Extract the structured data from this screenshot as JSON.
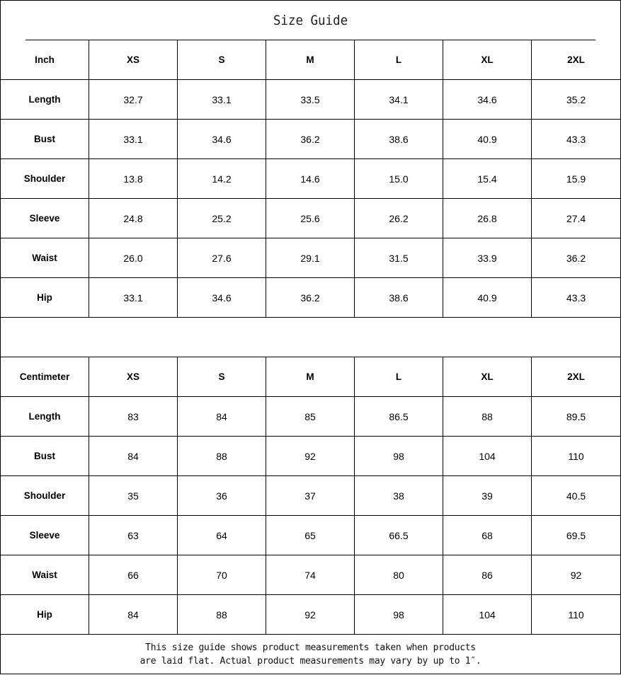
{
  "title": "Size Guide",
  "inch_table": {
    "header": [
      "Inch",
      "XS",
      "S",
      "M",
      "L",
      "XL",
      "2XL"
    ],
    "rows": [
      [
        "Length",
        "32.7",
        "33.1",
        "33.5",
        "34.1",
        "34.6",
        "35.2"
      ],
      [
        "Bust",
        "33.1",
        "34.6",
        "36.2",
        "38.6",
        "40.9",
        "43.3"
      ],
      [
        "Shoulder",
        "13.8",
        "14.2",
        "14.6",
        "15.0",
        "15.4",
        "15.9"
      ],
      [
        "Sleeve",
        "24.8",
        "25.2",
        "25.6",
        "26.2",
        "26.8",
        "27.4"
      ],
      [
        "Waist",
        "26.0",
        "27.6",
        "29.1",
        "31.5",
        "33.9",
        "36.2"
      ],
      [
        "Hip",
        "33.1",
        "34.6",
        "36.2",
        "38.6",
        "40.9",
        "43.3"
      ]
    ]
  },
  "cm_table": {
    "header": [
      "Centimeter",
      "XS",
      "S",
      "M",
      "L",
      "XL",
      "2XL"
    ],
    "rows": [
      [
        "Length",
        "83",
        "84",
        "85",
        "86.5",
        "88",
        "89.5"
      ],
      [
        "Bust",
        "84",
        "88",
        "92",
        "98",
        "104",
        "110"
      ],
      [
        "Shoulder",
        "35",
        "36",
        "37",
        "38",
        "39",
        "40.5"
      ],
      [
        "Sleeve",
        "63",
        "64",
        "65",
        "66.5",
        "68",
        "69.5"
      ],
      [
        "Waist",
        "66",
        "70",
        "74",
        "80",
        "86",
        "92"
      ],
      [
        "Hip",
        "84",
        "88",
        "92",
        "98",
        "104",
        "110"
      ]
    ]
  },
  "note": {
    "line1": "This size guide shows product measurements taken when products",
    "line2": "are laid flat. Actual product measurements may vary by up to 1″."
  }
}
